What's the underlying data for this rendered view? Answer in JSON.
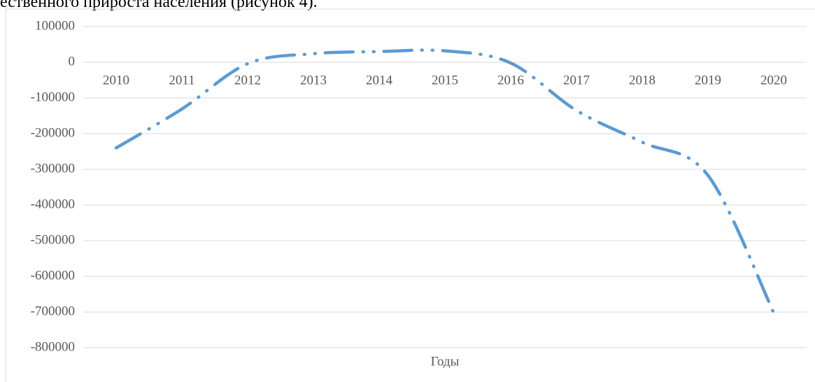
{
  "caption": "ественного прироста населения (рисунок 4).",
  "chart_data": {
    "type": "line",
    "categories": [
      "2010",
      "2011",
      "2012",
      "2013",
      "2014",
      "2015",
      "2016",
      "2017",
      "2018",
      "2019",
      "2020"
    ],
    "values": [
      -240000,
      -131000,
      -4000,
      24000,
      30000,
      32000,
      -2000,
      -135000,
      -224000,
      -317000,
      -702000
    ],
    "color": "#5b9bd5",
    "xlabel": "Годы",
    "ylim": [
      -800000,
      100000
    ],
    "yticks": [
      100000,
      0,
      -100000,
      -200000,
      -300000,
      -400000,
      -500000,
      -600000,
      -700000,
      -800000
    ],
    "grid": true
  }
}
